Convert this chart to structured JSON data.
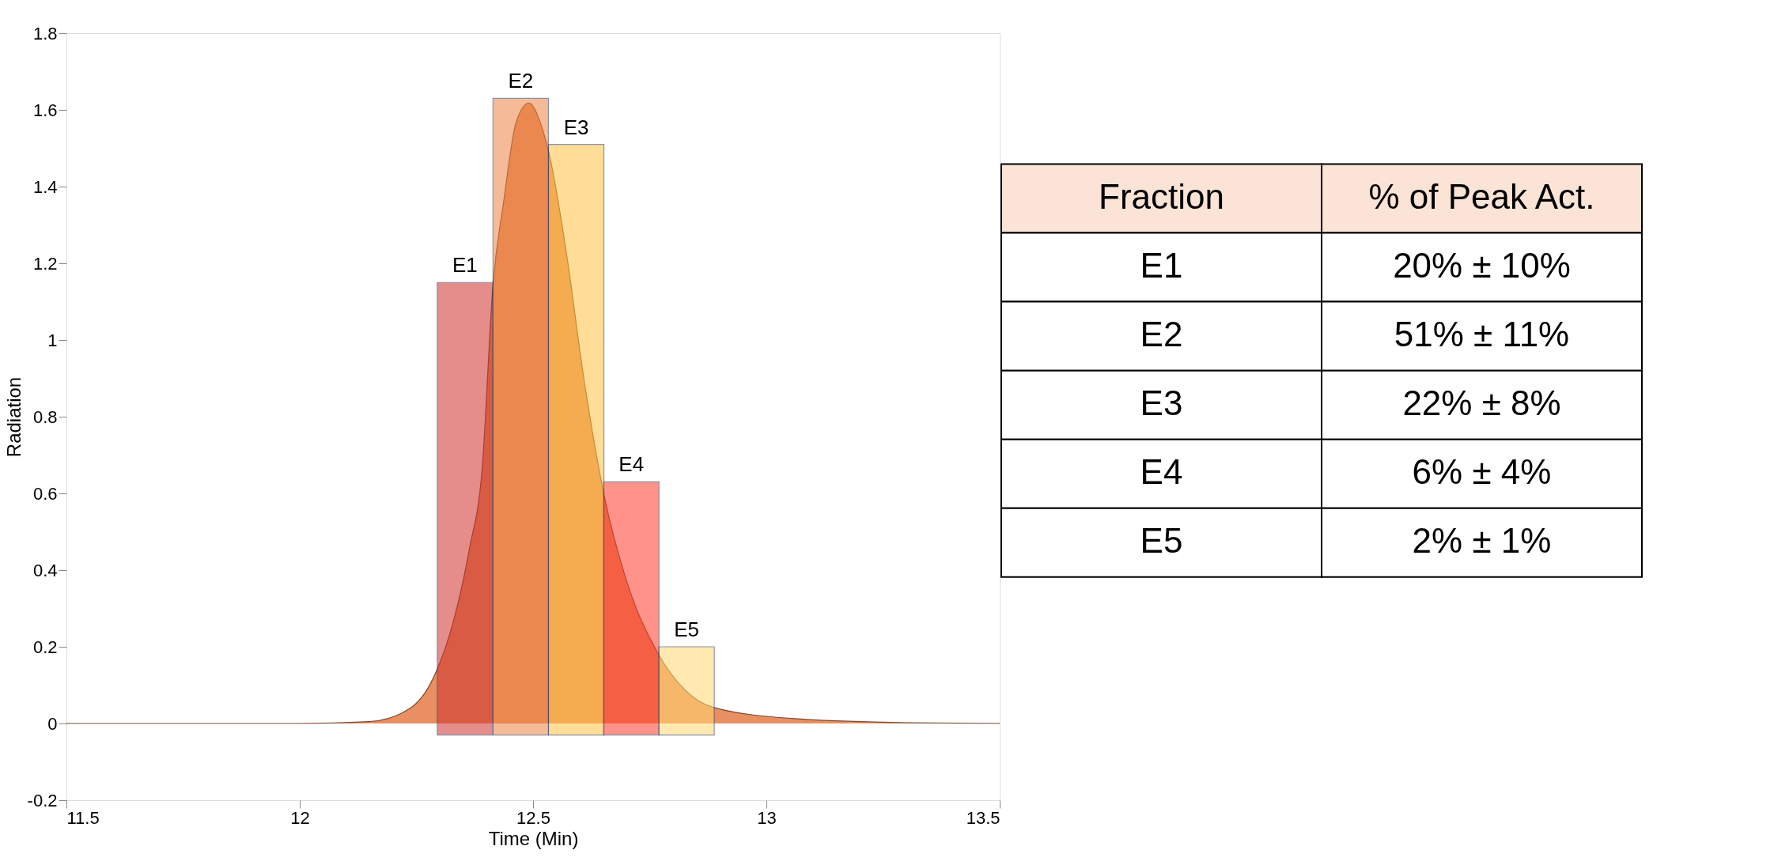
{
  "chart_data": {
    "type": "area",
    "xlabel": "Time (Min)",
    "ylabel": "Radiation",
    "xlim": [
      11.5,
      13.5
    ],
    "xticks": [
      11.5,
      12,
      12.5,
      13,
      13.5
    ],
    "ylim": [
      -0.2,
      1.8
    ],
    "yticks": [
      -0.2,
      0,
      0.2,
      0.4,
      0.6,
      0.8,
      1,
      1.2,
      1.4,
      1.6,
      1.8
    ],
    "grid": false,
    "series": [
      {
        "color": "#e0601e",
        "x": [
          11.5,
          12.0,
          12.15,
          12.237,
          12.292,
          12.328,
          12.364,
          12.391,
          12.414,
          12.437,
          12.464,
          12.491,
          12.518,
          12.536,
          12.572,
          12.609,
          12.654,
          12.699,
          12.769,
          12.826,
          12.889,
          13.067,
          13.3,
          13.5
        ],
        "values": [
          0,
          0,
          0.005,
          0.04,
          0.134,
          0.261,
          0.458,
          0.666,
          1.142,
          1.361,
          1.569,
          1.618,
          1.558,
          1.477,
          1.222,
          0.898,
          0.585,
          0.377,
          0.18,
          0.087,
          0.041,
          0.012,
          0.002,
          0
        ]
      },
      {
        "type": "bar",
        "x": [
          12.354,
          12.4735,
          12.5925,
          12.7105,
          12.829
        ],
        "base": [
          -0.03,
          -0.03,
          -0.03,
          -0.03,
          -0.03
        ],
        "values": [
          1.18,
          1.66,
          1.54,
          0.66,
          0.23
        ],
        "colors": [
          "#cf312d",
          "#ee8343",
          "#ffc343",
          "#ff3a2d",
          "#ffd873"
        ],
        "value_labels": [
          "E1",
          "E2",
          "E3",
          "E4",
          "E5"
        ]
      }
    ],
    "annotations": [
      "Fraction",
      "% of Peak Act.",
      "E1",
      "20% ± 10%",
      "E2",
      "51% ± 11%",
      "E3",
      "22% ± 8%",
      "E4",
      "6% ± 4%",
      "E5",
      "2% ± 1%"
    ]
  }
}
